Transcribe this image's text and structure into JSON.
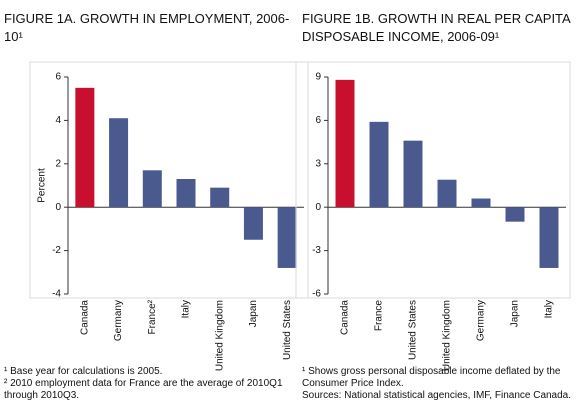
{
  "chart_data": [
    {
      "type": "bar",
      "title": "FIGURE 1A. GROWTH IN EMPLOYMENT, 2006-10¹",
      "ylabel": "Percent",
      "categories": [
        "Canada",
        "Germany",
        "France²",
        "Italy",
        "United Kingdom",
        "Japan",
        "United States"
      ],
      "values": [
        5.5,
        4.1,
        1.7,
        1.3,
        0.9,
        -1.5,
        -2.8
      ],
      "colors": [
        "#c8102e",
        "#4b5a8e",
        "#4b5a8e",
        "#4b5a8e",
        "#4b5a8e",
        "#4b5a8e",
        "#4b5a8e"
      ],
      "ylim": [
        -4,
        6
      ],
      "yticks": [
        -4,
        -2,
        0,
        2,
        4,
        6
      ],
      "notes": [
        "¹ Base year for calculations is 2005.",
        "² 2010 employment data for France are the average of 2010Q1 through 2010Q3."
      ]
    },
    {
      "type": "bar",
      "title": "FIGURE 1B. GROWTH IN REAL PER CAPITA DISPOSABLE INCOME, 2006-09¹",
      "categories": [
        "Canada",
        "France",
        "United States",
        "United Kingdom",
        "Germany",
        "Japan",
        "Italy"
      ],
      "values": [
        8.8,
        5.9,
        4.6,
        1.9,
        0.6,
        -1.0,
        -4.2
      ],
      "colors": [
        "#c8102e",
        "#4b5a8e",
        "#4b5a8e",
        "#4b5a8e",
        "#4b5a8e",
        "#4b5a8e",
        "#4b5a8e"
      ],
      "ylim": [
        -6,
        9
      ],
      "yticks": [
        -6,
        -3,
        0,
        3,
        6,
        9
      ],
      "notes": [
        "¹ Shows gross personal disposable income deflated by the Consumer Price Index.",
        "Sources: National statistical agencies, IMF, Finance Canada."
      ]
    }
  ]
}
